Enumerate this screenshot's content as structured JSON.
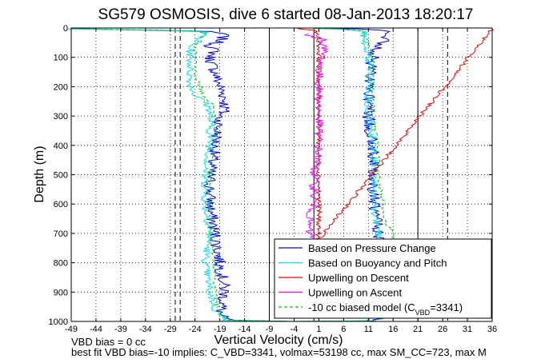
{
  "title": "SG579 OSMOSIS, dive 6 started 08-Jan-2013 18:20:17",
  "footer": {
    "line1": "VBD bias = 0 cc",
    "line2": "best fit VBD bias=-10 implies: C_VBD=3341, volmax=53198 cc, max SM_CC=723, max M"
  },
  "colors": {
    "pressure": "#0000ff",
    "buoyancy": "#00e5ee",
    "descent": "#ff0000",
    "ascent": "#ff00ff",
    "model": "#00cc00",
    "grid": "#000000"
  },
  "chart_data": {
    "type": "line",
    "title": "SG579 OSMOSIS, dive 6 started 08-Jan-2013 18:20:17",
    "xlabel": "Vertical Velocity (cm/s)",
    "ylabel": "Depth (m)",
    "xlim": [
      -49,
      36
    ],
    "ylim": [
      1000,
      0
    ],
    "y_inverted": true,
    "grid": true,
    "xticks": [
      -49,
      -44,
      -39,
      -34,
      -29,
      -24,
      -19,
      -14,
      -9,
      -4,
      1,
      6,
      11,
      16,
      21,
      26,
      31,
      36
    ],
    "yticks": [
      0,
      100,
      200,
      300,
      400,
      500,
      600,
      700,
      800,
      900,
      1000
    ],
    "reference_lines": {
      "solid_vertical_x": [
        -9,
        0,
        21
      ],
      "dashed_vertical_x": [
        -28,
        -27,
        27
      ]
    },
    "legend_location": "lower-right",
    "series": [
      {
        "name": "Based on Pressure Change",
        "color": "#0000ff",
        "style": "solid",
        "points": [
          [
            -49,
            2
          ],
          [
            -38,
            6
          ],
          [
            -22,
            12
          ],
          [
            -18,
            20
          ],
          [
            -19,
            45
          ],
          [
            -21,
            60
          ],
          [
            -20,
            80
          ],
          [
            -21,
            100
          ],
          [
            -20,
            150
          ],
          [
            -19,
            200
          ],
          [
            -18,
            240
          ],
          [
            -18,
            280
          ],
          [
            -19,
            300
          ],
          [
            -20,
            400
          ],
          [
            -21,
            500
          ],
          [
            -21,
            600
          ],
          [
            -20,
            700
          ],
          [
            -19,
            800
          ],
          [
            -18,
            900
          ],
          [
            -19,
            980
          ],
          [
            -17,
            996
          ],
          [
            -4,
            1000
          ],
          [
            11,
            998
          ],
          [
            13,
            990
          ],
          [
            12,
            900
          ],
          [
            13,
            800
          ],
          [
            13,
            700
          ],
          [
            12,
            600
          ],
          [
            12,
            500
          ],
          [
            12,
            400
          ],
          [
            11,
            300
          ],
          [
            11,
            200
          ],
          [
            12,
            100
          ],
          [
            14,
            40
          ],
          [
            14,
            20
          ],
          [
            15,
            8
          ],
          [
            10,
            3
          ],
          [
            0,
            1
          ]
        ]
      },
      {
        "name": "Based on Buoyancy and Pitch",
        "color": "#00e5ee",
        "style": "solid",
        "points": [
          [
            -49,
            3
          ],
          [
            -30,
            8
          ],
          [
            -22,
            14
          ],
          [
            -24,
            50
          ],
          [
            -25,
            60
          ],
          [
            -25,
            150
          ],
          [
            -25,
            190
          ],
          [
            -24,
            230
          ],
          [
            -22,
            250
          ],
          [
            -21,
            280
          ],
          [
            -21,
            400
          ],
          [
            -22,
            500
          ],
          [
            -22,
            600
          ],
          [
            -21,
            700
          ],
          [
            -22,
            800
          ],
          [
            -21,
            900
          ],
          [
            -20,
            960
          ],
          [
            -18,
            996
          ],
          [
            -4,
            1000
          ],
          [
            11,
            998
          ],
          [
            12,
            990
          ],
          [
            12,
            900
          ],
          [
            12,
            800
          ],
          [
            13,
            700
          ],
          [
            12,
            600
          ],
          [
            12,
            500
          ],
          [
            12,
            400
          ],
          [
            11,
            300
          ],
          [
            11,
            200
          ],
          [
            11,
            100
          ],
          [
            10,
            60
          ],
          [
            10,
            10
          ],
          [
            5,
            4
          ],
          [
            0,
            2
          ]
        ]
      },
      {
        "name": "Upwelling on Descent",
        "color": "#ff0000",
        "style": "solid",
        "points": [
          [
            -3,
            2
          ],
          [
            0,
            8
          ],
          [
            1,
            30
          ],
          [
            1,
            100
          ],
          [
            1,
            200
          ],
          [
            1,
            300
          ],
          [
            1,
            400
          ],
          [
            1,
            500
          ],
          [
            1,
            600
          ],
          [
            1,
            650
          ],
          [
            1,
            700
          ],
          [
            0,
            740
          ],
          [
            36,
            3
          ]
        ]
      },
      {
        "name": "Upwelling on Ascent",
        "color": "#ff00ff",
        "style": "solid",
        "points": [
          [
            -2,
            20
          ],
          [
            2,
            40
          ],
          [
            2,
            80
          ],
          [
            1,
            150
          ],
          [
            1,
            200
          ],
          [
            1,
            260
          ],
          [
            1,
            300
          ],
          [
            1,
            400
          ],
          [
            0,
            500
          ],
          [
            0,
            600
          ],
          [
            -1,
            650
          ],
          [
            -1,
            700
          ],
          [
            0,
            720
          ]
        ]
      },
      {
        "name": "-10 cc biased model (C_VBD=3341)",
        "color": "#00cc00",
        "style": "dashed",
        "points": [
          [
            -49,
            2
          ],
          [
            -24,
            10
          ],
          [
            -22,
            20
          ],
          [
            -23,
            50
          ],
          [
            -24,
            60
          ],
          [
            -24,
            150
          ],
          [
            -23,
            200
          ],
          [
            -22,
            240
          ],
          [
            -20,
            260
          ],
          [
            -20,
            300
          ],
          [
            -20,
            400
          ],
          [
            -21,
            500
          ],
          [
            -21,
            600
          ],
          [
            -21,
            700
          ],
          [
            -20,
            800
          ],
          [
            -20,
            900
          ],
          [
            -19,
            980
          ],
          [
            -17,
            996
          ],
          [
            -4,
            1000
          ],
          [
            12,
            998
          ],
          [
            14,
            990
          ],
          [
            14,
            900
          ],
          [
            15,
            800
          ],
          [
            16,
            700
          ],
          [
            14,
            650
          ],
          [
            14,
            600
          ],
          [
            13,
            500
          ],
          [
            13,
            400
          ],
          [
            12,
            300
          ],
          [
            12,
            200
          ],
          [
            12,
            100
          ],
          [
            11,
            60
          ],
          [
            10,
            10
          ],
          [
            5,
            3
          ],
          [
            0,
            1
          ]
        ]
      }
    ],
    "legend": [
      "Based on Pressure Change",
      "Based on Buoyancy and Pitch",
      "Upwelling on Descent",
      "Upwelling on Ascent",
      "-10 cc biased model (C"
    ],
    "legend_subscript": "VBD",
    "legend_suffix": "=3341)"
  }
}
